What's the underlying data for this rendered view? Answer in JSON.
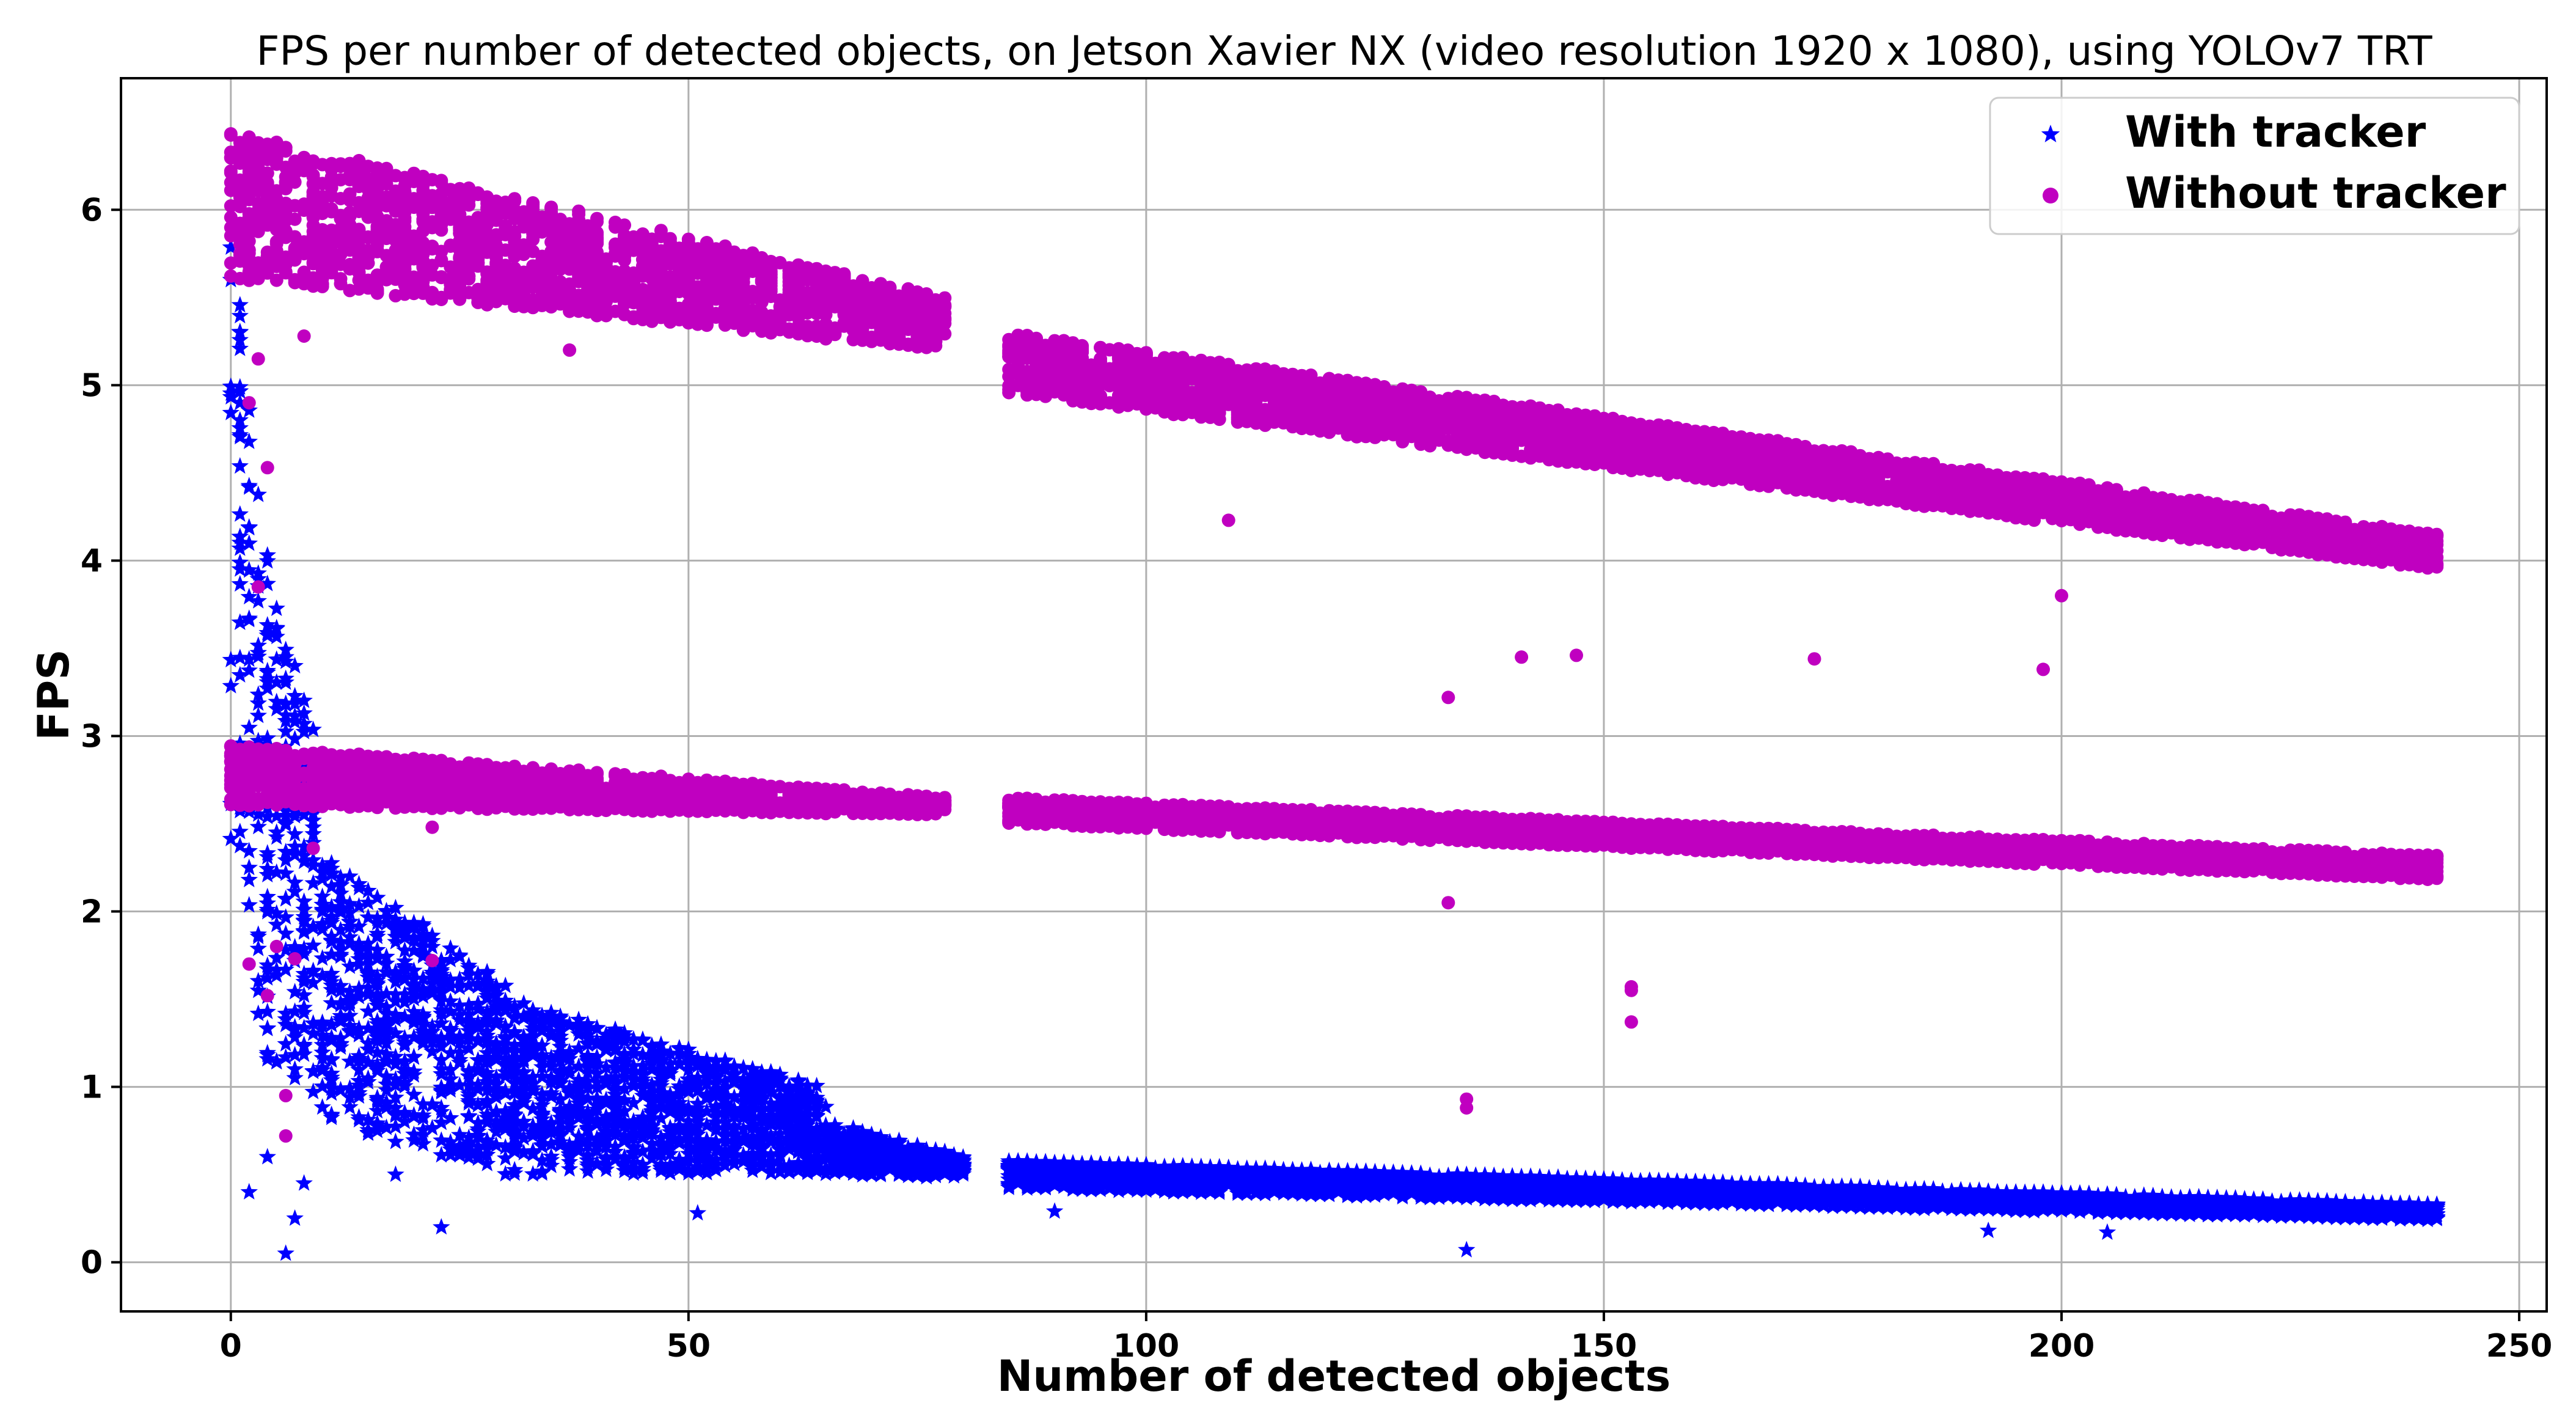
{
  "chart_data": {
    "type": "scatter",
    "title": "FPS per number of detected objects, on Jetson Xavier NX (video resolution 1920 x 1080), using YOLOv7 TRT",
    "xlabel": "Number of detected objects",
    "ylabel": "FPS",
    "xlim": [
      -12,
      253
    ],
    "ylim": [
      -0.28,
      6.75
    ],
    "xticks": [
      0,
      50,
      100,
      150,
      200,
      250
    ],
    "yticks": [
      0,
      1,
      2,
      3,
      4,
      5,
      6
    ],
    "grid": true,
    "legend_position": "top-right",
    "series": [
      {
        "name": "With tracker",
        "marker": "star",
        "color": "#0000ff",
        "bands": [
          {
            "x_from": 0,
            "x_to": 3,
            "y_at_start_low": 2.0,
            "y_at_start_high": 6.0,
            "y_at_end_low": 1.4,
            "y_at_end_high": 4.2
          },
          {
            "x_from": 3,
            "x_to": 10,
            "y_at_start_low": 1.2,
            "y_at_start_high": 4.2,
            "y_at_end_low": 0.9,
            "y_at_end_high": 2.8
          },
          {
            "x_from": 10,
            "x_to": 30,
            "y_at_start_low": 0.8,
            "y_at_start_high": 2.3,
            "y_at_end_low": 0.5,
            "y_at_end_high": 1.6
          },
          {
            "x_from": 30,
            "x_to": 65,
            "y_at_start_low": 0.5,
            "y_at_start_high": 1.5,
            "y_at_end_low": 0.5,
            "y_at_end_high": 1.0
          },
          {
            "x_from": 65,
            "x_to": 80,
            "y_at_start_low": 0.5,
            "y_at_start_high": 0.8,
            "y_at_end_low": 0.48,
            "y_at_end_high": 0.6
          },
          {
            "x_from": 85,
            "x_to": 241,
            "y_at_start_low": 0.42,
            "y_at_start_high": 0.58,
            "y_at_end_low": 0.24,
            "y_at_end_high": 0.33
          }
        ],
        "outliers": [
          [
            6,
            0.05
          ],
          [
            2,
            0.4
          ],
          [
            23,
            0.2
          ],
          [
            51,
            0.28
          ],
          [
            90,
            0.29
          ],
          [
            135,
            0.07
          ],
          [
            192,
            0.18
          ],
          [
            205,
            0.17
          ],
          [
            18,
            0.5
          ],
          [
            4,
            0.6
          ],
          [
            8,
            0.45
          ],
          [
            7,
            0.25
          ]
        ]
      },
      {
        "name": "Without tracker",
        "marker": "circle",
        "color": "#c000c0",
        "bands": [
          {
            "x_from": 0,
            "x_to": 78,
            "y_at_start_low": 5.6,
            "y_at_start_high": 6.45,
            "y_at_end_low": 5.2,
            "y_at_end_high": 5.5
          },
          {
            "x_from": 85,
            "x_to": 241,
            "y_at_start_low": 4.95,
            "y_at_start_high": 5.3,
            "y_at_end_low": 3.95,
            "y_at_end_high": 4.15
          },
          {
            "x_from": 0,
            "x_to": 78,
            "y_at_start_low": 2.6,
            "y_at_start_high": 2.95,
            "y_at_end_low": 2.55,
            "y_at_end_high": 2.65
          },
          {
            "x_from": 85,
            "x_to": 241,
            "y_at_start_low": 2.5,
            "y_at_start_high": 2.65,
            "y_at_end_low": 2.18,
            "y_at_end_high": 2.32
          }
        ],
        "outliers": [
          [
            133,
            3.22
          ],
          [
            173,
            3.44
          ],
          [
            198,
            3.38
          ],
          [
            200,
            3.8
          ],
          [
            109,
            4.23
          ],
          [
            141,
            3.45
          ],
          [
            147,
            3.46
          ],
          [
            135,
            0.93
          ],
          [
            135,
            0.88
          ],
          [
            153,
            1.57
          ],
          [
            153,
            1.37
          ],
          [
            153,
            1.55
          ],
          [
            6,
            0.95
          ],
          [
            6,
            0.72
          ],
          [
            4,
            1.52
          ],
          [
            2,
            1.7
          ],
          [
            5,
            1.8
          ],
          [
            7,
            1.73
          ],
          [
            3,
            3.85
          ],
          [
            4,
            4.53
          ],
          [
            2,
            4.9
          ],
          [
            3,
            5.15
          ],
          [
            22,
            1.72
          ],
          [
            22,
            2.48
          ],
          [
            9,
            2.36
          ],
          [
            8,
            5.28
          ],
          [
            37,
            5.2
          ],
          [
            133,
            2.05
          ]
        ]
      }
    ]
  }
}
